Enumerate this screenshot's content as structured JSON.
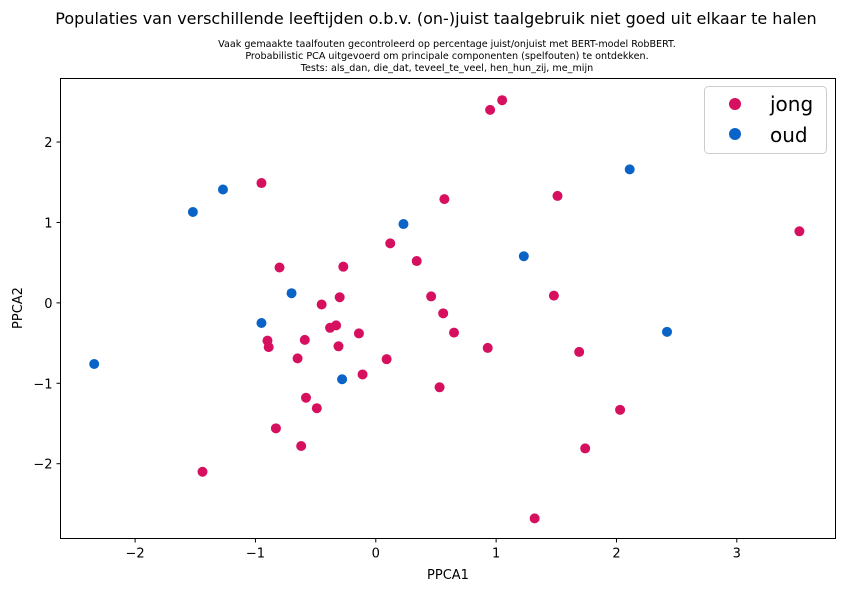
{
  "chart_data": {
    "type": "scatter",
    "title": "Populaties van verschillende leeftijden o.b.v. (on-)juist taalgebruik niet goed uit elkaar te halen",
    "subtitle_lines": [
      "Vaak gemaakte taalfouten gecontroleerd op percentage juist/onjuist met BERT-model RobBERT.",
      "Probabilistic PCA uitgevoerd om principale componenten (spelfouten) te ontdekken.",
      "Tests: als_dan, die_dat, teveel_te_veel, hen_hun_zij, me_mijn"
    ],
    "xlabel": "PPCA1",
    "ylabel": "PPCA2",
    "xlim": [
      -2.62,
      3.82
    ],
    "ylim": [
      -2.93,
      2.79
    ],
    "xticks": [
      -2,
      -1,
      0,
      1,
      2,
      3
    ],
    "yticks": [
      -2,
      -1,
      0,
      1,
      2
    ],
    "grid": false,
    "legend_position": "top-right",
    "series": [
      {
        "name": "jong",
        "color": "#d6105f",
        "points": [
          [
            0.95,
            2.4
          ],
          [
            1.05,
            2.52
          ],
          [
            -0.95,
            1.49
          ],
          [
            0.57,
            1.29
          ],
          [
            1.51,
            1.33
          ],
          [
            3.52,
            0.89
          ],
          [
            0.12,
            0.74
          ],
          [
            0.34,
            0.52
          ],
          [
            -0.8,
            0.44
          ],
          [
            -0.27,
            0.45
          ],
          [
            0.46,
            0.08
          ],
          [
            -0.3,
            0.07
          ],
          [
            -0.45,
            -0.02
          ],
          [
            1.48,
            0.09
          ],
          [
            0.56,
            -0.13
          ],
          [
            -0.38,
            -0.31
          ],
          [
            -0.33,
            -0.28
          ],
          [
            -0.14,
            -0.38
          ],
          [
            0.65,
            -0.37
          ],
          [
            -0.9,
            -0.47
          ],
          [
            -0.59,
            -0.46
          ],
          [
            -0.89,
            -0.55
          ],
          [
            -0.31,
            -0.54
          ],
          [
            0.93,
            -0.56
          ],
          [
            1.69,
            -0.61
          ],
          [
            -0.65,
            -0.69
          ],
          [
            0.09,
            -0.7
          ],
          [
            -0.11,
            -0.89
          ],
          [
            0.53,
            -1.05
          ],
          [
            -0.58,
            -1.18
          ],
          [
            -0.49,
            -1.31
          ],
          [
            2.03,
            -1.33
          ],
          [
            -0.83,
            -1.56
          ],
          [
            -0.62,
            -1.78
          ],
          [
            1.74,
            -1.81
          ],
          [
            -1.44,
            -2.1
          ],
          [
            1.32,
            -2.68
          ]
        ]
      },
      {
        "name": "oud",
        "color": "#0a64c8",
        "points": [
          [
            -1.52,
            1.13
          ],
          [
            -1.27,
            1.41
          ],
          [
            2.11,
            1.66
          ],
          [
            0.23,
            0.98
          ],
          [
            1.23,
            0.58
          ],
          [
            -0.7,
            0.12
          ],
          [
            -0.95,
            -0.25
          ],
          [
            2.42,
            -0.36
          ],
          [
            -2.34,
            -0.76
          ],
          [
            -0.28,
            -0.95
          ]
        ]
      }
    ]
  }
}
